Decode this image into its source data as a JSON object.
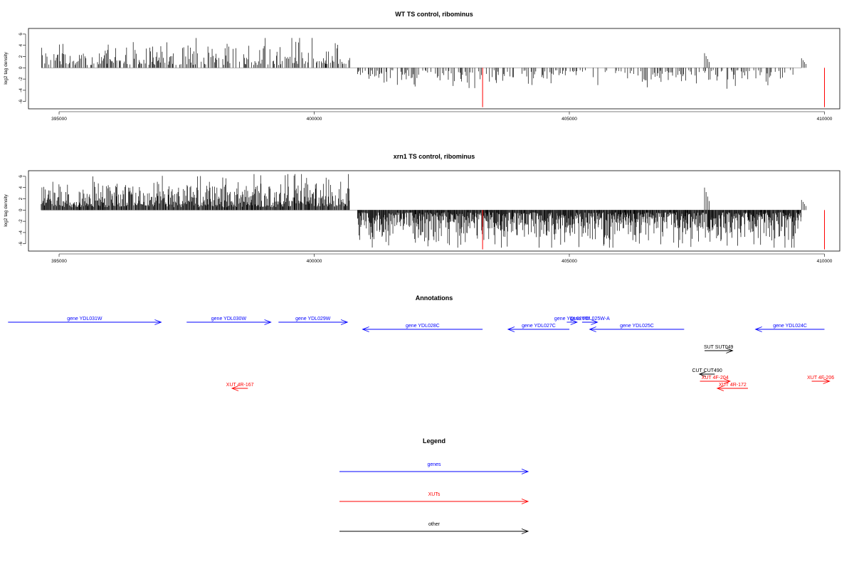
{
  "colors": {
    "gene": "#0000ff",
    "xut": "#ff0000",
    "other": "#000000",
    "axis": "#000000"
  },
  "chart_data": [
    {
      "type": "bar",
      "title": "WT TS control, ribominus",
      "ylabel": "log2 tag density",
      "xlim": [
        394400,
        410300
      ],
      "ylim": [
        -7.3,
        7
      ],
      "xticks": [
        395000,
        400000,
        405000,
        410000
      ],
      "yticks": [
        -6,
        -4,
        -2,
        0,
        2,
        4,
        6
      ],
      "grid": false,
      "plus_strand": {
        "x_range": [
          394650,
          400700
        ],
        "max": 5.3
      },
      "minus_strand": {
        "x_range": [
          400850,
          409550
        ],
        "min": -4.2
      },
      "highlight_bars": [
        {
          "x": 410000,
          "y": -7
        },
        {
          "x": 403300,
          "y": -7
        }
      ],
      "minor_peaks": [
        {
          "x": 407650,
          "y": 2.6
        },
        {
          "x": 409550,
          "y": 1.7
        }
      ]
    },
    {
      "type": "bar",
      "title": "xrn1 TS control, ribominus",
      "ylabel": "log2 tag density",
      "xlim": [
        394400,
        410300
      ],
      "ylim": [
        -7.3,
        7
      ],
      "xticks": [
        395000,
        400000,
        405000,
        410000
      ],
      "yticks": [
        -6,
        -4,
        -2,
        0,
        2,
        4,
        6
      ],
      "grid": false,
      "plus_strand": {
        "x_range": [
          394650,
          400700
        ],
        "max": 6.4
      },
      "minus_strand": {
        "x_range": [
          400850,
          409550
        ],
        "min": -6.7
      },
      "highlight_bars": [
        {
          "x": 410000,
          "y": -7
        },
        {
          "x": 403300,
          "y": -7
        }
      ],
      "minor_peaks": [
        {
          "x": 407650,
          "y": 4
        },
        {
          "x": 409550,
          "y": 1.8
        }
      ]
    }
  ],
  "annotations": {
    "title": "Annotations",
    "items": [
      {
        "label": "gene YDL031W",
        "start": 394000,
        "end": 397000,
        "strand": "+",
        "row": 0,
        "kind": "gene"
      },
      {
        "label": "gene YDL030W",
        "start": 397500,
        "end": 399150,
        "strand": "+",
        "row": 0,
        "kind": "gene"
      },
      {
        "label": "gene YDL029W",
        "start": 399300,
        "end": 400650,
        "strand": "+",
        "row": 0,
        "kind": "gene"
      },
      {
        "label": "gene YDL028C",
        "start": 400950,
        "end": 403300,
        "strand": "-",
        "row": 1,
        "kind": "gene"
      },
      {
        "label": "gene YDL027C",
        "start": 403800,
        "end": 405000,
        "strand": "-",
        "row": 1,
        "kind": "gene"
      },
      {
        "label": "gene YDL026W",
        "start": 404950,
        "end": 405150,
        "strand": "+",
        "row": 0,
        "kind": "gene"
      },
      {
        "label": "gene YDL025W-A",
        "start": 405250,
        "end": 405550,
        "strand": "+",
        "row": 0,
        "kind": "gene"
      },
      {
        "label": "gene YDL025C",
        "start": 405400,
        "end": 407250,
        "strand": "-",
        "row": 1,
        "kind": "gene"
      },
      {
        "label": "gene YDL024C",
        "start": 408650,
        "end": 410000,
        "strand": "-",
        "row": 1,
        "kind": "gene"
      },
      {
        "label": "SUT SUT049",
        "start": 407650,
        "end": 408200,
        "strand": "+",
        "row": 3,
        "kind": "other"
      },
      {
        "label": "CUT CUT490",
        "start": 407550,
        "end": 407850,
        "strand": "-",
        "row": 5,
        "kind": "other"
      },
      {
        "label": "XUT 4F-204",
        "start": 407560,
        "end": 408150,
        "strand": "+",
        "row": 6,
        "kind": "xut"
      },
      {
        "label": "XUT 4R-172",
        "start": 407900,
        "end": 408500,
        "strand": "-",
        "row": 7,
        "kind": "xut"
      },
      {
        "label": "XUT 4R-167",
        "start": 398390,
        "end": 398700,
        "strand": "-",
        "row": 7,
        "kind": "xut"
      },
      {
        "label": "XUT 4F-206",
        "start": 409750,
        "end": 410100,
        "strand": "+",
        "row": 6,
        "kind": "xut"
      }
    ]
  },
  "legend": {
    "title": "Legend",
    "items": [
      {
        "label": "genes",
        "kind": "gene"
      },
      {
        "label": "XUTs",
        "kind": "xut"
      },
      {
        "label": "other",
        "kind": "other"
      }
    ]
  }
}
